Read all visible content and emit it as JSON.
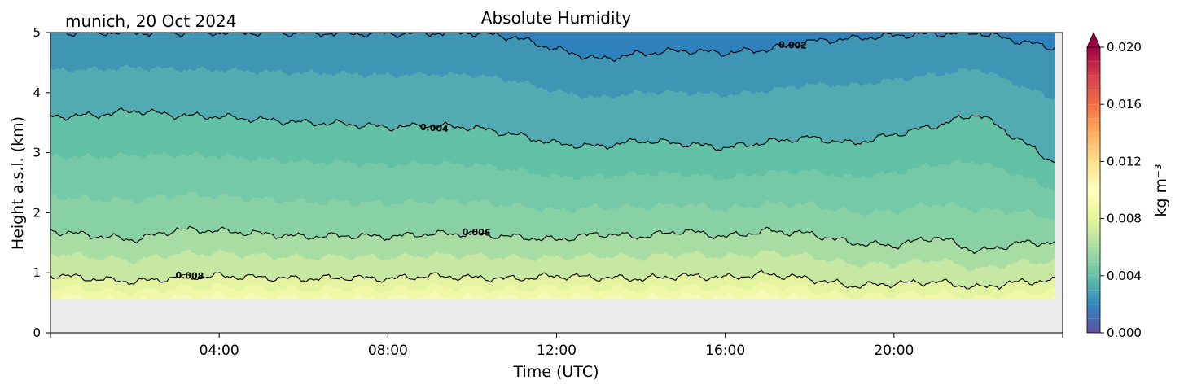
{
  "location_date": "munich, 20 Oct 2024",
  "chart_data": {
    "type": "heatmap",
    "title": "Absolute Humidity",
    "xlabel": "Time (UTC)",
    "ylabel": "Height a.s.l. (km)",
    "x_ticks": [
      "04:00",
      "08:00",
      "12:00",
      "16:00",
      "20:00"
    ],
    "x_tick_hours": [
      4,
      8,
      12,
      16,
      20
    ],
    "xlim_hours": [
      0,
      24
    ],
    "ylim": [
      0,
      5
    ],
    "y_ticks": [
      "0",
      "1",
      "2",
      "3",
      "4",
      "5"
    ],
    "no_data_below_km": 0.55,
    "colorbar": {
      "label": "kg m⁻³",
      "range": [
        0.0,
        0.02
      ],
      "ticks": [
        "0.000",
        "0.004",
        "0.008",
        "0.012",
        "0.016",
        "0.020"
      ],
      "extend": "max",
      "colormap": "Spectral_r",
      "colors": [
        "#5e4fa2",
        "#3288bd",
        "#66c2a5",
        "#abdda4",
        "#e6f598",
        "#ffffbf",
        "#fee08b",
        "#fdae61",
        "#f46d43",
        "#d53e4f",
        "#9e0142"
      ]
    },
    "contours": [
      {
        "level": 0.002,
        "label": "0.002",
        "points": [
          [
            0,
            5.0
          ],
          [
            2,
            5.0
          ],
          [
            4,
            5.0
          ],
          [
            6,
            4.99
          ],
          [
            8,
            4.98
          ],
          [
            10,
            5.0
          ],
          [
            11,
            4.92
          ],
          [
            12,
            4.72
          ],
          [
            13,
            4.55
          ],
          [
            14,
            4.65
          ],
          [
            15,
            4.7
          ],
          [
            16,
            4.66
          ],
          [
            17,
            4.72
          ],
          [
            18,
            4.85
          ],
          [
            19,
            4.9
          ],
          [
            20,
            4.95
          ],
          [
            21,
            4.98
          ],
          [
            22,
            5.0
          ],
          [
            23,
            4.85
          ],
          [
            24,
            4.72
          ]
        ]
      },
      {
        "level": 0.004,
        "label": "0.004",
        "points": [
          [
            0,
            3.6
          ],
          [
            1,
            3.62
          ],
          [
            2,
            3.7
          ],
          [
            3,
            3.62
          ],
          [
            4,
            3.6
          ],
          [
            5,
            3.55
          ],
          [
            6,
            3.5
          ],
          [
            7,
            3.48
          ],
          [
            8,
            3.42
          ],
          [
            9,
            3.45
          ],
          [
            10,
            3.42
          ],
          [
            11,
            3.3
          ],
          [
            12,
            3.15
          ],
          [
            13,
            3.1
          ],
          [
            14,
            3.2
          ],
          [
            15,
            3.15
          ],
          [
            16,
            3.08
          ],
          [
            17,
            3.18
          ],
          [
            18,
            3.25
          ],
          [
            19,
            3.15
          ],
          [
            20,
            3.3
          ],
          [
            21,
            3.45
          ],
          [
            22,
            3.65
          ],
          [
            23,
            3.2
          ],
          [
            24,
            2.75
          ]
        ]
      },
      {
        "level": 0.006,
        "label": "0.006",
        "points": [
          [
            0,
            1.7
          ],
          [
            1,
            1.62
          ],
          [
            2,
            1.55
          ],
          [
            3,
            1.72
          ],
          [
            4,
            1.7
          ],
          [
            5,
            1.65
          ],
          [
            6,
            1.6
          ],
          [
            7,
            1.62
          ],
          [
            8,
            1.6
          ],
          [
            9,
            1.65
          ],
          [
            10,
            1.65
          ],
          [
            11,
            1.6
          ],
          [
            12,
            1.55
          ],
          [
            13,
            1.65
          ],
          [
            14,
            1.6
          ],
          [
            15,
            1.7
          ],
          [
            16,
            1.6
          ],
          [
            17,
            1.7
          ],
          [
            18,
            1.65
          ],
          [
            19,
            1.5
          ],
          [
            20,
            1.45
          ],
          [
            21,
            1.6
          ],
          [
            22,
            1.35
          ],
          [
            23,
            1.5
          ],
          [
            24,
            1.5
          ]
        ]
      },
      {
        "level": 0.008,
        "label": "0.008",
        "points": [
          [
            0,
            0.97
          ],
          [
            1,
            0.9
          ],
          [
            2,
            0.85
          ],
          [
            3,
            0.92
          ],
          [
            4,
            0.95
          ],
          [
            5,
            0.92
          ],
          [
            6,
            0.9
          ],
          [
            7,
            0.92
          ],
          [
            8,
            0.9
          ],
          [
            9,
            0.95
          ],
          [
            10,
            0.92
          ],
          [
            11,
            0.9
          ],
          [
            12,
            0.95
          ],
          [
            13,
            0.92
          ],
          [
            14,
            0.9
          ],
          [
            15,
            0.95
          ],
          [
            16,
            0.92
          ],
          [
            17,
            0.98
          ],
          [
            18,
            0.9
          ],
          [
            19,
            0.78
          ],
          [
            20,
            0.82
          ],
          [
            21,
            0.85
          ],
          [
            22,
            0.75
          ],
          [
            23,
            0.85
          ],
          [
            24,
            0.87
          ]
        ]
      }
    ],
    "grid": false
  }
}
